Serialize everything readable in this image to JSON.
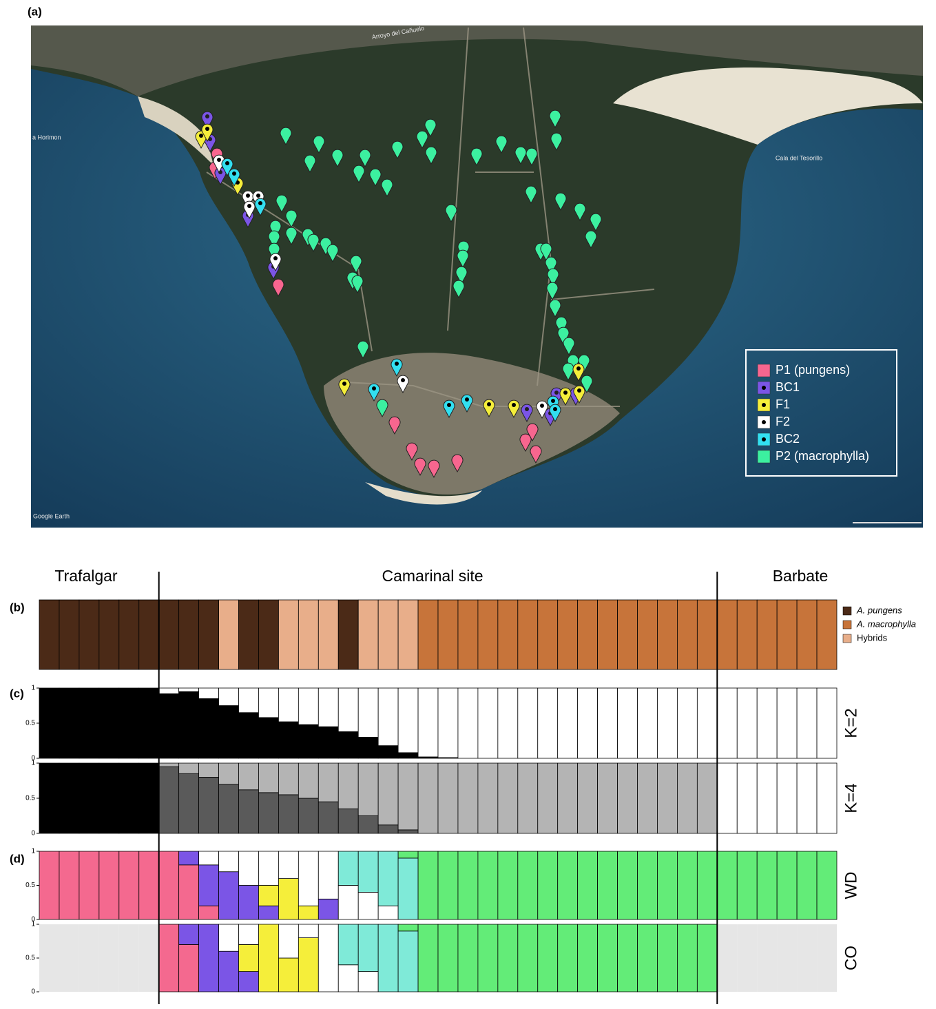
{
  "panel_a": {
    "label": "(a)",
    "map_labels": [
      "Arroyo del Cañuelo",
      "Cala del Tesorillo",
      "a Horimon",
      "Google Earth"
    ],
    "legend": [
      {
        "name": "P1 (pungens)",
        "color": "#f7668f"
      },
      {
        "name": "BC1",
        "color": "#7b55e6"
      },
      {
        "name": "F1",
        "color": "#f5ee3a"
      },
      {
        "name": "F2",
        "color": "#ffffff"
      },
      {
        "name": "BC2",
        "color": "#32dff0"
      },
      {
        "name": "P2 (macrophylla)",
        "color": "#3cf0a0"
      }
    ]
  },
  "sites": [
    "Trafalgar",
    "Camarinal site",
    "Barbate"
  ],
  "panel_b": {
    "label": "(b)",
    "legend": [
      {
        "name": "A. pungens",
        "color": "#4b2a17"
      },
      {
        "name": "A. macrophylla",
        "color": "#c7743a"
      },
      {
        "name": "Hybrids",
        "color": "#e8ae8a"
      }
    ],
    "classes": [
      0,
      0,
      0,
      0,
      0,
      0,
      0,
      0,
      0,
      2,
      0,
      0,
      2,
      2,
      2,
      0,
      2,
      2,
      2,
      1,
      1,
      1,
      1,
      1,
      1,
      1,
      1,
      1,
      1,
      1,
      1,
      1,
      1,
      1,
      1,
      1,
      1,
      1,
      1,
      1
    ]
  },
  "panel_c": {
    "label": "(c)",
    "charts": [
      {
        "type": "stacked_bar",
        "title": "K=2",
        "ylim": [
          0,
          1
        ],
        "yticks": [
          0,
          0.5,
          1
        ],
        "series": [
          {
            "color": "#000000",
            "values": [
              1,
              1,
              1,
              1,
              1,
              1,
              0.92,
              0.95,
              0.85,
              0.75,
              0.65,
              0.58,
              0.52,
              0.48,
              0.45,
              0.38,
              0.3,
              0.18,
              0.08,
              0.02,
              0.01,
              0,
              0,
              0,
              0,
              0,
              0,
              0,
              0,
              0,
              0,
              0,
              0,
              0,
              0,
              0,
              0,
              0,
              0,
              0
            ]
          },
          {
            "color": "#ffffff",
            "values": [
              0,
              0,
              0,
              0,
              0,
              0,
              0.08,
              0.05,
              0.15,
              0.25,
              0.35,
              0.42,
              0.48,
              0.52,
              0.55,
              0.62,
              0.7,
              0.82,
              0.92,
              0.98,
              0.99,
              1,
              1,
              1,
              1,
              1,
              1,
              1,
              1,
              1,
              1,
              1,
              1,
              1,
              1,
              1,
              1,
              1,
              1,
              1
            ]
          }
        ]
      },
      {
        "type": "stacked_bar",
        "title": "K=4",
        "ylim": [
          0,
          1
        ],
        "yticks": [
          0,
          0.5,
          1
        ],
        "series": [
          {
            "color": "#000000",
            "values": [
              1,
              1,
              1,
              1,
              1,
              1,
              0,
              0,
              0,
              0,
              0,
              0,
              0,
              0,
              0,
              0,
              0,
              0,
              0,
              0,
              0,
              0,
              0,
              0,
              0,
              0,
              0,
              0,
              0,
              0,
              0,
              0,
              0,
              0,
              0,
              0,
              0,
              0,
              0,
              0
            ]
          },
          {
            "color": "#5a5a5a",
            "values": [
              0,
              0,
              0,
              0,
              0,
              0,
              0.95,
              0.85,
              0.8,
              0.7,
              0.62,
              0.58,
              0.55,
              0.5,
              0.45,
              0.35,
              0.25,
              0.12,
              0.05,
              0,
              0,
              0,
              0,
              0,
              0,
              0,
              0,
              0,
              0,
              0,
              0,
              0,
              0,
              0,
              0,
              0,
              0,
              0,
              0,
              0
            ]
          },
          {
            "color": "#b4b4b4",
            "values": [
              0,
              0,
              0,
              0,
              0,
              0,
              0.05,
              0.15,
              0.2,
              0.3,
              0.38,
              0.42,
              0.45,
              0.5,
              0.55,
              0.65,
              0.75,
              0.88,
              0.95,
              1,
              1,
              1,
              1,
              1,
              1,
              1,
              1,
              1,
              1,
              1,
              1,
              1,
              1,
              1,
              0,
              0,
              0,
              0,
              0,
              0
            ]
          },
          {
            "color": "#ffffff",
            "values": [
              0,
              0,
              0,
              0,
              0,
              0,
              0,
              0,
              0,
              0,
              0,
              0,
              0,
              0,
              0,
              0,
              0,
              0,
              0,
              0,
              0,
              0,
              0,
              0,
              0,
              0,
              0,
              0,
              0,
              0,
              0,
              0,
              0,
              0,
              1,
              1,
              1,
              1,
              1,
              1
            ]
          }
        ]
      }
    ]
  },
  "panel_d": {
    "label": "(d)",
    "charts": [
      {
        "type": "stacked_bar",
        "title": "WD",
        "ylim": [
          0,
          1
        ],
        "yticks": [
          0,
          0.5,
          1
        ],
        "series": [
          {
            "color": "#f4698f",
            "values": [
              1,
              1,
              1,
              1,
              1,
              1,
              1,
              0.8,
              0.2,
              0,
              0,
              0,
              0,
              0,
              0,
              0,
              0,
              0,
              0,
              0,
              0,
              0,
              0,
              0,
              0,
              0,
              0,
              0,
              0,
              0,
              0,
              0,
              0,
              0,
              0,
              0,
              0,
              0,
              0,
              0
            ]
          },
          {
            "color": "#7b55e6",
            "values": [
              0,
              0,
              0,
              0,
              0,
              0,
              0,
              0.2,
              0.6,
              0.7,
              0.5,
              0.2,
              0,
              0,
              0.3,
              0,
              0,
              0,
              0,
              0,
              0,
              0,
              0,
              0,
              0,
              0,
              0,
              0,
              0,
              0,
              0,
              0,
              0,
              0,
              0,
              0,
              0,
              0,
              0,
              0
            ]
          },
          {
            "color": "#f5ee3a",
            "values": [
              0,
              0,
              0,
              0,
              0,
              0,
              0,
              0,
              0,
              0,
              0,
              0.3,
              0.6,
              0.2,
              0,
              0,
              0,
              0,
              0,
              0,
              0,
              0,
              0,
              0,
              0,
              0,
              0,
              0,
              0,
              0,
              0,
              0,
              0,
              0,
              0,
              0,
              0,
              0,
              0,
              0
            ]
          },
          {
            "color": "#ffffff",
            "values": [
              0,
              0,
              0,
              0,
              0,
              0,
              0,
              0,
              0.2,
              0.3,
              0.5,
              0.5,
              0.4,
              0.8,
              0.7,
              0.5,
              0.4,
              0.2,
              0,
              0,
              0,
              0,
              0,
              0,
              0,
              0,
              0,
              0,
              0,
              0,
              0,
              0,
              0,
              0,
              0,
              0,
              0,
              0,
              0,
              0
            ]
          },
          {
            "color": "#7fead8",
            "values": [
              0,
              0,
              0,
              0,
              0,
              0,
              0,
              0,
              0,
              0,
              0,
              0,
              0,
              0,
              0,
              0.5,
              0.6,
              0.8,
              0.9,
              0,
              0,
              0,
              0,
              0,
              0,
              0,
              0,
              0,
              0,
              0,
              0,
              0,
              0,
              0,
              0,
              0,
              0,
              0,
              0,
              0
            ]
          },
          {
            "color": "#63ec78",
            "values": [
              0,
              0,
              0,
              0,
              0,
              0,
              0,
              0,
              0,
              0,
              0,
              0,
              0,
              0,
              0,
              0,
              0,
              0,
              0.1,
              1,
              1,
              1,
              1,
              1,
              1,
              1,
              1,
              1,
              1,
              1,
              1,
              1,
              1,
              1,
              1,
              1,
              1,
              1,
              1,
              1
            ]
          }
        ]
      },
      {
        "type": "stacked_bar",
        "title": "CO",
        "ylim": [
          0,
          1
        ],
        "yticks": [
          0,
          0.5,
          1
        ],
        "series": [
          {
            "color": "#f4698f",
            "values": [
              null,
              null,
              null,
              null,
              null,
              null,
              1,
              0.7,
              0,
              0,
              0,
              0,
              0,
              0,
              0,
              0,
              0,
              0,
              0,
              0,
              0,
              0,
              0,
              0,
              0,
              0,
              0,
              0,
              0,
              0,
              0,
              0,
              0,
              0,
              null,
              null,
              null,
              null,
              null,
              null
            ]
          },
          {
            "color": "#7b55e6",
            "values": [
              null,
              null,
              null,
              null,
              null,
              null,
              0,
              0.3,
              1,
              0.6,
              0.3,
              0,
              0,
              0,
              0,
              0,
              0,
              0,
              0,
              0,
              0,
              0,
              0,
              0,
              0,
              0,
              0,
              0,
              0,
              0,
              0,
              0,
              0,
              0,
              null,
              null,
              null,
              null,
              null,
              null
            ]
          },
          {
            "color": "#f5ee3a",
            "values": [
              null,
              null,
              null,
              null,
              null,
              null,
              0,
              0,
              0,
              0,
              0.4,
              1,
              0.5,
              0.8,
              0,
              0,
              0,
              0,
              0,
              0,
              0,
              0,
              0,
              0,
              0,
              0,
              0,
              0,
              0,
              0,
              0,
              0,
              0,
              0,
              null,
              null,
              null,
              null,
              null,
              null
            ]
          },
          {
            "color": "#ffffff",
            "values": [
              null,
              null,
              null,
              null,
              null,
              null,
              0,
              0,
              0,
              0.4,
              0.3,
              0,
              0.5,
              0.2,
              1,
              0.4,
              0.3,
              0,
              0,
              0,
              0,
              0,
              0,
              0,
              0,
              0,
              0,
              0,
              0,
              0,
              0,
              0,
              0,
              0,
              null,
              null,
              null,
              null,
              null,
              null
            ]
          },
          {
            "color": "#7fead8",
            "values": [
              null,
              null,
              null,
              null,
              null,
              null,
              0,
              0,
              0,
              0,
              0,
              0,
              0,
              0,
              0,
              0.6,
              0.7,
              1,
              0.9,
              0,
              0,
              0,
              0,
              0,
              0,
              0,
              0,
              0,
              0,
              0,
              0,
              0,
              0,
              0,
              null,
              null,
              null,
              null,
              null,
              null
            ]
          },
          {
            "color": "#63ec78",
            "values": [
              null,
              null,
              null,
              null,
              null,
              null,
              0,
              0,
              0,
              0,
              0,
              0,
              0,
              0,
              0,
              0,
              0,
              0,
              0.1,
              1,
              1,
              1,
              1,
              1,
              1,
              1,
              1,
              1,
              1,
              1,
              1,
              1,
              1,
              1,
              null,
              null,
              null,
              null,
              null,
              null
            ]
          }
        ]
      }
    ]
  }
}
